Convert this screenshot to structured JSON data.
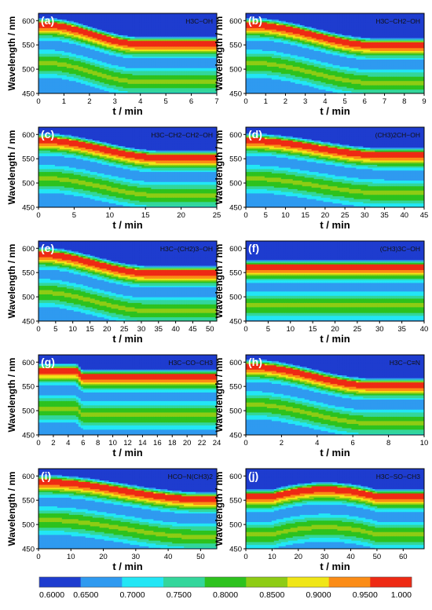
{
  "chart_data": {
    "type": "heatmap",
    "panels": [
      {
        "id": "a",
        "label": "(a)",
        "formula": "H3C−OH",
        "xlabel": "t / min",
        "ylabel": "Wavelength / nm",
        "xlim": [
          0,
          7
        ],
        "xticks": [
          0,
          1,
          2,
          3,
          4,
          5,
          6,
          7
        ],
        "ylim": [
          450,
          615
        ],
        "yticks": [
          450,
          500,
          550,
          600
        ],
        "shift_start": 0.35,
        "shift_end": 3.9,
        "band_start": 593,
        "band_end": 555,
        "pattern": "step"
      },
      {
        "id": "b",
        "label": "(b)",
        "formula": "H3C−CH2−OH",
        "xlabel": "t / min",
        "ylabel": "Wavelength / nm",
        "xlim": [
          0,
          9
        ],
        "xticks": [
          0,
          1,
          2,
          3,
          4,
          5,
          6,
          7,
          8,
          9
        ],
        "ylim": [
          450,
          615
        ],
        "yticks": [
          450,
          500,
          550,
          600
        ],
        "shift_start": 0.4,
        "shift_end": 6.5,
        "band_start": 593,
        "band_end": 552,
        "pattern": "step"
      },
      {
        "id": "c",
        "label": "(c)",
        "formula": "H3C−CH2−CH2−OH",
        "xlabel": "t / min",
        "ylabel": "Wavelength / nm",
        "xlim": [
          0,
          25
        ],
        "xticks": [
          0,
          5,
          10,
          15,
          20,
          25
        ],
        "ylim": [
          450,
          615
        ],
        "yticks": [
          450,
          500,
          550,
          600
        ],
        "shift_start": 1.0,
        "shift_end": 17,
        "band_start": 590,
        "band_end": 555,
        "pattern": "step"
      },
      {
        "id": "d",
        "label": "(d)",
        "formula": "(CH3)2CH−OH",
        "xlabel": "t / min",
        "ylabel": "Wavelength / nm",
        "xlim": [
          0,
          45
        ],
        "xticks": [
          0,
          5,
          10,
          15,
          20,
          25,
          30,
          35,
          40,
          45
        ],
        "ylim": [
          450,
          615
        ],
        "yticks": [
          450,
          500,
          550,
          600
        ],
        "shift_start": 1.0,
        "shift_end": 35,
        "band_start": 590,
        "band_end": 560,
        "pattern": "step"
      },
      {
        "id": "e",
        "label": "(e)",
        "formula": "H3C−(CH2)3−OH",
        "xlabel": "t / min",
        "ylabel": "Wavelength / nm",
        "xlim": [
          0,
          52
        ],
        "xticks": [
          0,
          5,
          10,
          15,
          20,
          25,
          30,
          35,
          40,
          45,
          50
        ],
        "ylim": [
          450,
          615
        ],
        "yticks": [
          450,
          500,
          550,
          600
        ],
        "shift_start": 1.0,
        "shift_end": 32,
        "band_start": 590,
        "band_end": 552,
        "pattern": "step"
      },
      {
        "id": "f",
        "label": "(f)",
        "formula": "(CH3)3C−OH",
        "xlabel": "t / min",
        "ylabel": "Wavelength / nm",
        "xlim": [
          0,
          40
        ],
        "xticks": [
          0,
          5,
          10,
          15,
          20,
          25,
          30,
          35,
          40
        ],
        "ylim": [
          450,
          615
        ],
        "yticks": [
          450,
          500,
          550,
          600
        ],
        "shift_start": 0,
        "shift_end": 0,
        "band_start": 563,
        "band_end": 563,
        "pattern": "flat"
      },
      {
        "id": "g",
        "label": "(g)",
        "formula": "H3C−CO−CH3",
        "xlabel": "t / min",
        "ylabel": "Wavelength / nm",
        "xlim": [
          0,
          24
        ],
        "xticks": [
          0,
          2,
          4,
          6,
          8,
          10,
          12,
          14,
          16,
          18,
          20,
          22,
          24
        ],
        "ylim": [
          450,
          615
        ],
        "yticks": [
          450,
          500,
          550,
          600
        ],
        "shift_start": 5.0,
        "shift_end": 6.0,
        "band_start": 585,
        "band_end": 572,
        "pattern": "step"
      },
      {
        "id": "h",
        "label": "(h)",
        "formula": "H3C−C≡N",
        "xlabel": "t / min",
        "ylabel": "Wavelength / nm",
        "xlim": [
          0,
          10
        ],
        "xticks": [
          0,
          2,
          4,
          6,
          8,
          10
        ],
        "ylim": [
          450,
          615
        ],
        "yticks": [
          450,
          500,
          550,
          600
        ],
        "shift_start": 0.4,
        "shift_end": 7.0,
        "band_start": 593,
        "band_end": 555,
        "pattern": "step"
      },
      {
        "id": "i",
        "label": "(i)",
        "formula": "HCO−N(CH3)2",
        "xlabel": "t / min",
        "ylabel": "Wavelength / nm",
        "xlim": [
          0,
          55
        ],
        "xticks": [
          0,
          10,
          20,
          30,
          40,
          50
        ],
        "ylim": [
          450,
          615
        ],
        "yticks": [
          450,
          500,
          550,
          600
        ],
        "shift_start": 2.0,
        "shift_end": 50,
        "band_start": 590,
        "band_end": 555,
        "pattern": "step"
      },
      {
        "id": "j",
        "label": "(j)",
        "formula": "H3C−SO−CH3",
        "xlabel": "t / min",
        "ylabel": "Wavelength / nm",
        "xlim": [
          0,
          68
        ],
        "xticks": [
          0,
          10,
          20,
          30,
          40,
          50,
          60
        ],
        "ylim": [
          450,
          615
        ],
        "yticks": [
          450,
          500,
          550,
          600
        ],
        "shift_start": 10,
        "shift_end": 50,
        "band_start": 560,
        "band_end": 575,
        "pattern": "bump"
      }
    ],
    "colorbar": {
      "levels": [
        0.6,
        0.65,
        0.7,
        0.75,
        0.8,
        0.85,
        0.9,
        0.95,
        1.0
      ],
      "tick_labels": [
        "0.6000",
        "0.6500",
        "0.7000",
        "0.7500",
        "0.8000",
        "0.8500",
        "0.9000",
        "0.9500",
        "1.000"
      ],
      "colors": [
        "#1e3ccf",
        "#2f9af0",
        "#22e6f5",
        "#33d69b",
        "#2dc21e",
        "#8ecc14",
        "#f0e616",
        "#fb8c16",
        "#ee2a14"
      ]
    }
  }
}
